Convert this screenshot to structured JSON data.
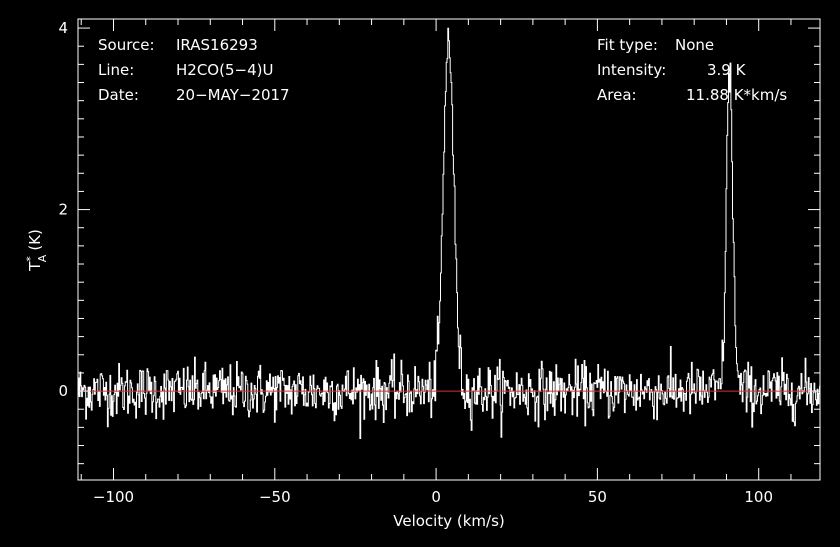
{
  "info": {
    "source_label": "Source:",
    "source_value": "IRAS16293",
    "line_label": "Line:",
    "line_value": "H2CO(5−4)U",
    "date_label": "Date:",
    "date_value": "20−MAY−2017",
    "fit_label": "Fit type:",
    "fit_value": "None",
    "intensity_label": "Intensity:",
    "intensity_value": "3.9 K",
    "area_label": "Area:",
    "area_value": "11.88 K*km/s"
  },
  "colors": {
    "background": "#000000",
    "spectrum": "#ffffff",
    "baseline": "#ff2020",
    "axes": "#ffffff"
  },
  "chart_data": {
    "type": "line",
    "title": "",
    "xlabel": "Velocity (km/s)",
    "ylabel": "T",
    "ylabel_sup": "*",
    "ylabel_sub": "A",
    "ylabel_unit": "(K)",
    "xlim": [
      -111,
      119
    ],
    "ylim": [
      -0.98,
      4.1
    ],
    "x_ticks": [
      -100,
      -50,
      0,
      50,
      100
    ],
    "x_tick_labels": [
      "−100",
      "−50",
      "0",
      "50",
      "100"
    ],
    "y_ticks": [
      0,
      2,
      4
    ],
    "y_tick_labels": [
      "0",
      "2",
      "4"
    ],
    "grid": false,
    "baseline_value": 0,
    "noise_rms": 0.15,
    "series": [
      {
        "values_description_source": "peaks",
        "peaks": [
          {
            "x": 3.9,
            "y": 3.9,
            "width": 1.6
          },
          {
            "x": 91.0,
            "y": 3.5,
            "width": 1.0
          }
        ]
      }
    ]
  }
}
